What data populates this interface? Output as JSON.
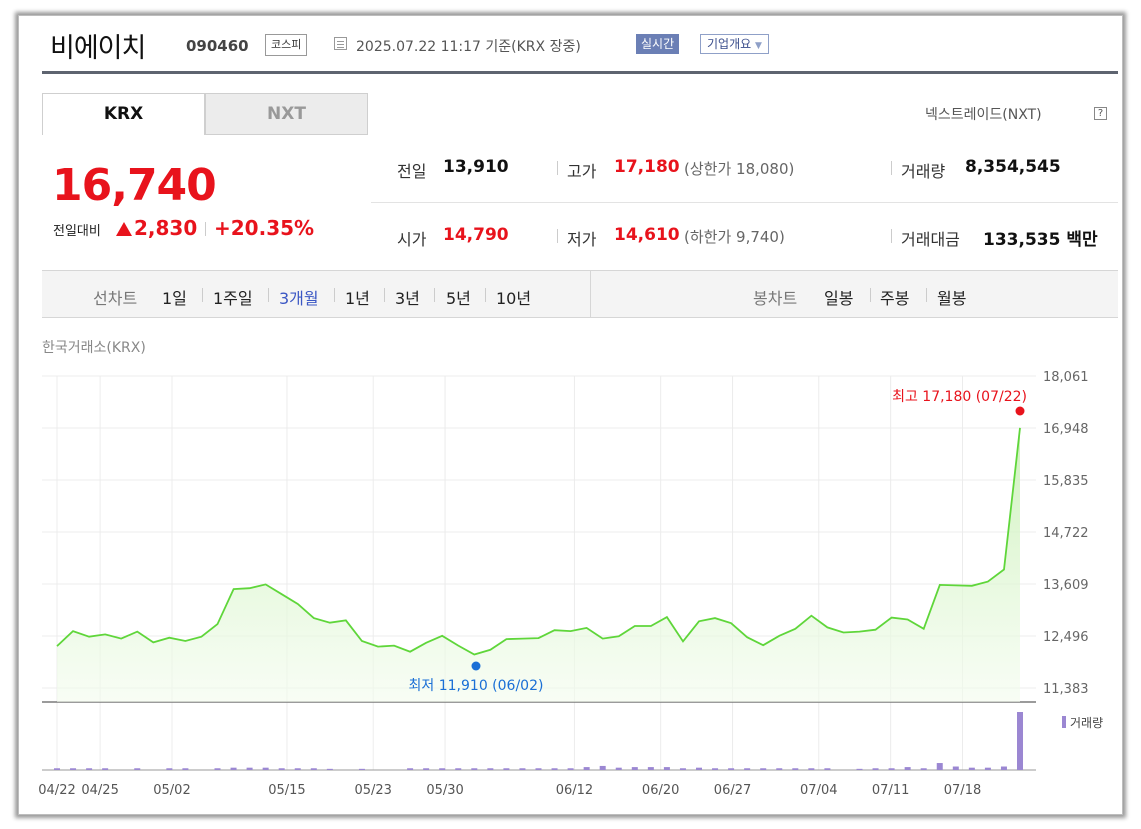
{
  "header": {
    "company_name": "비에이치",
    "stock_code": "090460",
    "market_tag": "코스피",
    "as_of": "2025.07.22 11:17 기준(KRX 장중)",
    "realtime_button": "실시간",
    "company_overview_button": "기업개요"
  },
  "exchange_tabs": [
    {
      "label": "KRX",
      "active": true
    },
    {
      "label": "NXT",
      "active": false
    }
  ],
  "nxt_link": "넥스트레이드(NXT)",
  "help_icon": "?",
  "quote": {
    "price": "16,740",
    "change_label": "전일대비",
    "change": "2,830",
    "change_pct": "+20.35%",
    "direction": "up"
  },
  "stats": {
    "prev_close": {
      "label": "전일",
      "value": "13,910"
    },
    "high": {
      "label": "고가",
      "value": "17,180",
      "sub": "(상한가 18,080)"
    },
    "volume": {
      "label": "거래량",
      "value": "8,354,545"
    },
    "open": {
      "label": "시가",
      "value": "14,790"
    },
    "low": {
      "label": "저가",
      "value": "14,610",
      "sub": "(하한가 9,740)"
    },
    "turnover": {
      "label": "거래대금",
      "value": "133,535",
      "unit": "백만"
    }
  },
  "chart_tabs": {
    "line_label": "선차트",
    "periods": [
      {
        "label": "1일",
        "active": false
      },
      {
        "label": "1주일",
        "active": false
      },
      {
        "label": "3개월",
        "active": true
      },
      {
        "label": "1년",
        "active": false
      },
      {
        "label": "3년",
        "active": false
      },
      {
        "label": "5년",
        "active": false
      },
      {
        "label": "10년",
        "active": false
      }
    ],
    "candle_label": "봉차트",
    "candle_periods": [
      "일봉",
      "주봉",
      "월봉"
    ]
  },
  "exchange_label": "한국거래소(KRX)",
  "colors": {
    "up": "#e8131c",
    "active_tab": "#3b57c4",
    "line": "#5fd63a",
    "volume": "#9b87d2",
    "low_marker": "#1a6fd6"
  },
  "chart_data": {
    "type": "line",
    "xlabel": "",
    "ylabel": "",
    "ylim": [
      11383,
      18061
    ],
    "yticks": [
      "18,061",
      "16,948",
      "15,835",
      "14,722",
      "13,609",
      "12,496",
      "11,383"
    ],
    "xticks": [
      "04/22",
      "04/25",
      "05/02",
      "05/15",
      "05/23",
      "05/30",
      "06/12",
      "06/20",
      "06/27",
      "07/04",
      "07/11",
      "07/18"
    ],
    "high_label": "최고 17,180 (07/22)",
    "low_label": "최저 11,910 (06/02)",
    "volume_legend": "거래량",
    "series": [
      {
        "name": "",
        "values": [
          12280,
          12600,
          12480,
          12530,
          12440,
          12590,
          12360,
          12460,
          12390,
          12480,
          12750,
          13500,
          13520,
          13600,
          13390,
          13180,
          12880,
          12780,
          12830,
          12390,
          12270,
          12290,
          12160,
          12350,
          12500,
          12290,
          12100,
          12200,
          12430,
          12440,
          12450,
          12620,
          12600,
          12670,
          12440,
          12490,
          12710,
          12710,
          12900,
          12380,
          12810,
          12880,
          12770,
          12470,
          12300,
          12500,
          12650,
          12930,
          12680,
          12570,
          12590,
          12630,
          12890,
          12850,
          12650,
          13590,
          13580,
          13570,
          13660,
          13920,
          16950
        ]
      }
    ],
    "volume": [
      0.03,
      0.03,
      0.03,
      0.03,
      0.0,
      0.03,
      0.0,
      0.03,
      0.03,
      0.0,
      0.03,
      0.04,
      0.04,
      0.04,
      0.03,
      0.03,
      0.03,
      0.02,
      0.0,
      0.02,
      0.0,
      0.0,
      0.03,
      0.03,
      0.03,
      0.03,
      0.03,
      0.03,
      0.03,
      0.03,
      0.03,
      0.03,
      0.03,
      0.05,
      0.07,
      0.04,
      0.05,
      0.05,
      0.05,
      0.03,
      0.04,
      0.03,
      0.03,
      0.03,
      0.03,
      0.03,
      0.03,
      0.03,
      0.03,
      0.0,
      0.02,
      0.03,
      0.03,
      0.05,
      0.03,
      0.12,
      0.06,
      0.04,
      0.04,
      0.06,
      1.0
    ]
  }
}
